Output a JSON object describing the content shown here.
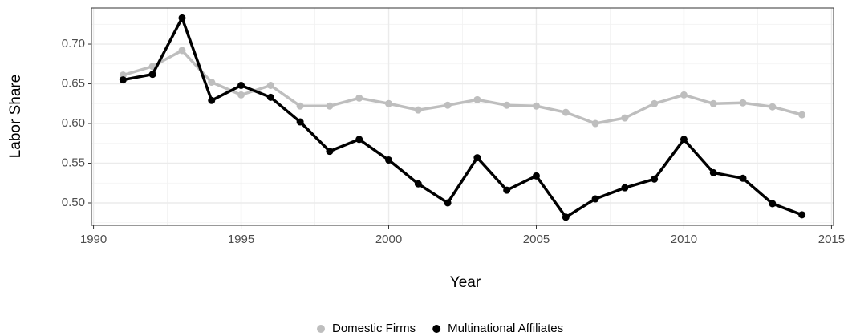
{
  "chart_data": {
    "type": "line",
    "x_label": "Year",
    "y_label": "Labor Share",
    "x": [
      1991,
      1992,
      1993,
      1994,
      1995,
      1996,
      1997,
      1998,
      1999,
      2000,
      2001,
      2002,
      2003,
      2004,
      2005,
      2006,
      2007,
      2008,
      2009,
      2010,
      2011,
      2012,
      2013,
      2014
    ],
    "series": [
      {
        "name": "Domestic Firms",
        "color": "#bebebe",
        "values": [
          0.661,
          0.672,
          0.692,
          0.652,
          0.636,
          0.648,
          0.622,
          0.622,
          0.632,
          0.625,
          0.617,
          0.623,
          0.63,
          0.623,
          0.622,
          0.614,
          0.6,
          0.607,
          0.625,
          0.636,
          0.625,
          0.626,
          0.621,
          0.611
        ]
      },
      {
        "name": "Multinational Affiliates",
        "color": "#000000",
        "values": [
          0.655,
          0.662,
          0.733,
          0.629,
          0.648,
          0.633,
          0.602,
          0.565,
          0.58,
          0.554,
          0.524,
          0.5,
          0.557,
          0.516,
          0.534,
          0.482,
          0.505,
          0.519,
          0.53,
          0.58,
          0.538,
          0.531,
          0.499,
          0.485
        ]
      }
    ],
    "xlim": [
      1989.93,
      2015.07
    ],
    "xticks": [
      1990,
      1995,
      2000,
      2005,
      2010,
      2015
    ],
    "ylim": [
      0.4717,
      0.7455
    ],
    "yticks": [
      {
        "value": 0.5,
        "label": "0.50"
      },
      0.55,
      {
        "value": 0.6,
        "label": "0.60"
      },
      0.65,
      {
        "value": 0.7,
        "label": "0.70"
      }
    ],
    "grid": true,
    "legend_position": "bottom"
  }
}
